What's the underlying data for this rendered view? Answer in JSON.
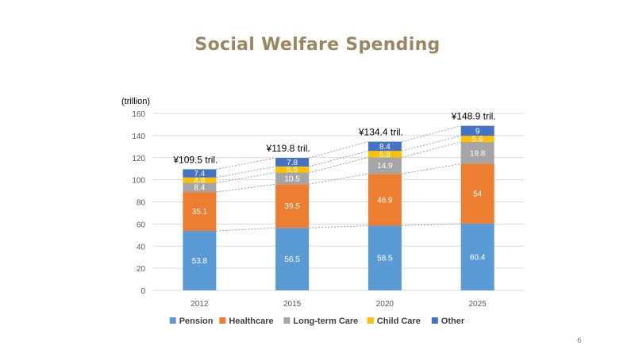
{
  "slide": {
    "title": "Social Welfare Spending",
    "page_number": "6"
  },
  "colors": {
    "title": "#9b8660",
    "pension": "#5b9bd5",
    "healthcare": "#ed7d31",
    "longterm": "#a5a5a5",
    "childcare": "#ffc000",
    "other": "#4472c4"
  },
  "chart_data": {
    "type": "bar",
    "stacked": true,
    "categories": [
      "2012",
      "2015",
      "2020",
      "2025"
    ],
    "series": [
      {
        "name": "Pension",
        "values": [
          53.8,
          56.5,
          58.5,
          60.4
        ],
        "color": "#5b9bd5",
        "labels": [
          "53.8",
          "56.5",
          "58.5",
          "60.4"
        ]
      },
      {
        "name": "Healthcare",
        "values": [
          35.1,
          39.5,
          46.9,
          54
        ],
        "color": "#ed7d31",
        "labels": [
          "35.1",
          "39.5",
          "46.9",
          "54"
        ]
      },
      {
        "name": "Long-term Care",
        "values": [
          8.4,
          10.5,
          14.9,
          19.8
        ],
        "color": "#a5a5a5",
        "labels": [
          "8.4",
          "10.5",
          "14.9",
          "19.8"
        ]
      },
      {
        "name": "Child Care",
        "values": [
          4.8,
          5.5,
          5.8,
          5.6
        ],
        "color": "#ffc000",
        "labels": [
          "4.8",
          "5.5",
          "5.8",
          "5.6"
        ]
      },
      {
        "name": "Other",
        "values": [
          7.4,
          7.8,
          8.4,
          9
        ],
        "color": "#4472c4",
        "labels": [
          "7.4",
          "7.8",
          "8.4",
          "9"
        ]
      }
    ],
    "totals": [
      "¥109.5 tril.",
      "¥119.8 tril.",
      "¥134.4 tril.",
      "¥148.9 tril."
    ],
    "ylabel": "(trillion)",
    "ylim": [
      0,
      160
    ],
    "yticks": [
      0,
      20,
      40,
      60,
      80,
      100,
      120,
      140,
      160
    ],
    "ytick_labels": [
      "0",
      "20",
      "40",
      "60",
      "80",
      "100",
      "120",
      "140",
      "160"
    ],
    "grid": true,
    "series_lines": true,
    "legend": "bottom"
  }
}
